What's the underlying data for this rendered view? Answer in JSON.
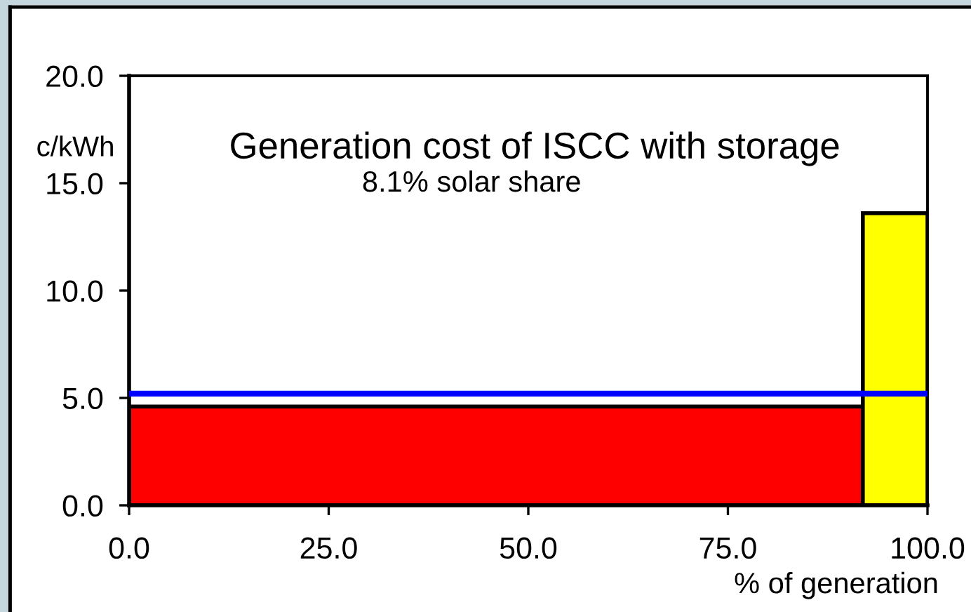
{
  "chart_data": {
    "type": "histogram",
    "title": "Generation cost of ISCC with storage",
    "subtitle": "8.1% solar share",
    "xlabel": "% of generation",
    "ylabel": "c/kWh",
    "bins": [
      0,
      91.9,
      100
    ],
    "values": [
      4.6,
      13.6
    ],
    "colors": [
      "#ff0000",
      "#ffff00"
    ],
    "xlim": [
      0,
      100
    ],
    "xticks": [
      {
        "value": 0,
        "label": "0.0"
      },
      {
        "value": 25,
        "label": "25.0"
      },
      {
        "value": 50,
        "label": "50.0"
      },
      {
        "value": 75,
        "label": "75.0"
      },
      {
        "value": 100,
        "label": "100.0"
      }
    ],
    "ylim": [
      0,
      20
    ],
    "yticks": [
      {
        "value": 0,
        "label": "0.0"
      },
      {
        "value": 5,
        "label": "5.0"
      },
      {
        "value": 10,
        "label": "10.0"
      },
      {
        "value": 15,
        "label": "15.0"
      },
      {
        "value": 20,
        "label": "20.0"
      }
    ],
    "ref_lines": [
      {
        "axis": "y",
        "value": 5.2,
        "color": "#0000ff"
      }
    ]
  }
}
